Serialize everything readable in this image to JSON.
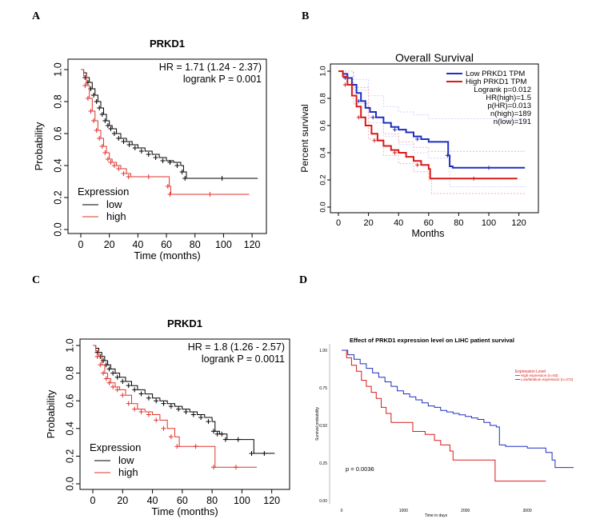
{
  "panel_labels": {
    "a": "A",
    "b": "B",
    "c": "C",
    "d": "D"
  },
  "colors": {
    "low_km": "#000000",
    "high_km": "#e0322c",
    "gepia_low": "#1f2fbf",
    "gepia_high": "#d91a1a",
    "ci_line": "#aaaaaa"
  },
  "chart_data": [
    {
      "id": "A",
      "type": "line",
      "title": "PRKD1",
      "xlabel": "Time (months)",
      "ylabel": "Probability",
      "xlim": [
        0,
        125
      ],
      "ylim": [
        0,
        1
      ],
      "x_ticks": [
        "0",
        "20",
        "40",
        "60",
        "80",
        "100",
        "120"
      ],
      "y_ticks": [
        "0.0",
        "0.2",
        "0.4",
        "0.6",
        "0.8",
        "1.0"
      ],
      "annotations": [
        "HR = 1.71 (1.24 - 2.37)",
        "logrank P = 0.001"
      ],
      "legend_title": "Expression",
      "legend_position": "bottom-left",
      "series": [
        {
          "name": "low",
          "color": "#000000",
          "points": [
            [
              0,
              1.0
            ],
            [
              2,
              0.98
            ],
            [
              4,
              0.95
            ],
            [
              6,
              0.92
            ],
            [
              8,
              0.88
            ],
            [
              10,
              0.84
            ],
            [
              12,
              0.8
            ],
            [
              14,
              0.76
            ],
            [
              16,
              0.72
            ],
            [
              18,
              0.68
            ],
            [
              20,
              0.65
            ],
            [
              22,
              0.63
            ],
            [
              25,
              0.6
            ],
            [
              28,
              0.57
            ],
            [
              32,
              0.55
            ],
            [
              36,
              0.53
            ],
            [
              40,
              0.51
            ],
            [
              45,
              0.49
            ],
            [
              50,
              0.47
            ],
            [
              55,
              0.45
            ],
            [
              60,
              0.43
            ],
            [
              65,
              0.42
            ],
            [
              70,
              0.4
            ],
            [
              72,
              0.36
            ],
            [
              74,
              0.32
            ],
            [
              124,
              0.32
            ]
          ]
        },
        {
          "name": "high",
          "color": "#e0322c",
          "points": [
            [
              0,
              1.0
            ],
            [
              2,
              0.96
            ],
            [
              4,
              0.9
            ],
            [
              6,
              0.82
            ],
            [
              8,
              0.74
            ],
            [
              10,
              0.68
            ],
            [
              12,
              0.62
            ],
            [
              14,
              0.57
            ],
            [
              16,
              0.52
            ],
            [
              18,
              0.48
            ],
            [
              20,
              0.44
            ],
            [
              22,
              0.42
            ],
            [
              25,
              0.4
            ],
            [
              28,
              0.38
            ],
            [
              32,
              0.35
            ],
            [
              35,
              0.33
            ],
            [
              60,
              0.33
            ],
            [
              62,
              0.27
            ],
            [
              63,
              0.22
            ],
            [
              118,
              0.22
            ]
          ]
        }
      ]
    },
    {
      "id": "B",
      "type": "line",
      "title": "Overall Survival",
      "xlabel": "Months",
      "ylabel": "Percent survival",
      "xlim": [
        0,
        125
      ],
      "ylim": [
        0,
        1
      ],
      "x_ticks": [
        "0",
        "20",
        "40",
        "60",
        "80",
        "100",
        "120"
      ],
      "y_ticks": [
        "0.0",
        "0.2",
        "0.4",
        "0.6",
        "0.8",
        "1.0"
      ],
      "legend": [
        "Low PRKD1 TPM",
        "High PRKD1 TPM"
      ],
      "annotations": [
        "Logrank p=0.012",
        "HR(high)=1.5",
        "p(HR)=0.013",
        "n(high)=189",
        "n(low)=191"
      ],
      "series": [
        {
          "name": "Low PRKD1 TPM",
          "color": "#1f2fbf",
          "points": [
            [
              0,
              1.0
            ],
            [
              3,
              0.98
            ],
            [
              6,
              0.95
            ],
            [
              9,
              0.9
            ],
            [
              12,
              0.84
            ],
            [
              15,
              0.78
            ],
            [
              18,
              0.73
            ],
            [
              21,
              0.7
            ],
            [
              25,
              0.66
            ],
            [
              30,
              0.62
            ],
            [
              35,
              0.59
            ],
            [
              40,
              0.57
            ],
            [
              45,
              0.55
            ],
            [
              50,
              0.52
            ],
            [
              55,
              0.5
            ],
            [
              60,
              0.48
            ],
            [
              72,
              0.48
            ],
            [
              73,
              0.38
            ],
            [
              74,
              0.3
            ],
            [
              76,
              0.29
            ],
            [
              124,
              0.29
            ]
          ]
        },
        {
          "name": "High PRKD1 TPM",
          "color": "#d91a1a",
          "points": [
            [
              0,
              1.0
            ],
            [
              3,
              0.96
            ],
            [
              6,
              0.9
            ],
            [
              9,
              0.82
            ],
            [
              12,
              0.74
            ],
            [
              15,
              0.66
            ],
            [
              18,
              0.6
            ],
            [
              22,
              0.54
            ],
            [
              26,
              0.49
            ],
            [
              30,
              0.45
            ],
            [
              35,
              0.42
            ],
            [
              40,
              0.4
            ],
            [
              45,
              0.37
            ],
            [
              50,
              0.34
            ],
            [
              55,
              0.31
            ],
            [
              60,
              0.28
            ],
            [
              61,
              0.21
            ],
            [
              119,
              0.21
            ]
          ]
        },
        {
          "name": "Low CI upper",
          "color": "#d0d0ff",
          "dashed": true,
          "points": [
            [
              0,
              1.0
            ],
            [
              10,
              0.94
            ],
            [
              20,
              0.82
            ],
            [
              30,
              0.74
            ],
            [
              40,
              0.7
            ],
            [
              50,
              0.68
            ],
            [
              60,
              0.65
            ],
            [
              80,
              0.65
            ],
            [
              124,
              0.65
            ]
          ]
        },
        {
          "name": "Low CI lower",
          "color": "#d0d0ff",
          "dashed": true,
          "points": [
            [
              0,
              1.0
            ],
            [
              10,
              0.86
            ],
            [
              20,
              0.62
            ],
            [
              30,
              0.52
            ],
            [
              40,
              0.46
            ],
            [
              50,
              0.4
            ],
            [
              60,
              0.36
            ],
            [
              74,
              0.15
            ],
            [
              124,
              0.15
            ]
          ]
        },
        {
          "name": "High CI upper",
          "color": "#f0b0b0",
          "dashed": true,
          "points": [
            [
              0,
              1.0
            ],
            [
              10,
              0.88
            ],
            [
              20,
              0.66
            ],
            [
              30,
              0.54
            ],
            [
              40,
              0.48
            ],
            [
              50,
              0.44
            ],
            [
              60,
              0.41
            ],
            [
              124,
              0.41
            ]
          ]
        },
        {
          "name": "High CI lower",
          "color": "#f0b0b0",
          "dashed": true,
          "points": [
            [
              0,
              1.0
            ],
            [
              10,
              0.76
            ],
            [
              20,
              0.5
            ],
            [
              30,
              0.38
            ],
            [
              40,
              0.32
            ],
            [
              50,
              0.26
            ],
            [
              60,
              0.2
            ],
            [
              62,
              0.1
            ],
            [
              124,
              0.1
            ]
          ]
        }
      ]
    },
    {
      "id": "C",
      "type": "line",
      "title": "PRKD1",
      "xlabel": "Time (months)",
      "ylabel": "Probability",
      "xlim": [
        0,
        125
      ],
      "ylim": [
        0,
        1
      ],
      "x_ticks": [
        "0",
        "20",
        "40",
        "60",
        "80",
        "100",
        "120"
      ],
      "y_ticks": [
        "0.0",
        "0.2",
        "0.4",
        "0.6",
        "0.8",
        "1.0"
      ],
      "annotations": [
        "HR = 1.8 (1.26 - 2.57)",
        "logrank P = 0.0011"
      ],
      "legend_title": "Expression",
      "legend_position": "bottom-left",
      "series": [
        {
          "name": "low",
          "color": "#000000",
          "points": [
            [
              0,
              1.0
            ],
            [
              2,
              0.98
            ],
            [
              4,
              0.95
            ],
            [
              6,
              0.92
            ],
            [
              8,
              0.89
            ],
            [
              10,
              0.86
            ],
            [
              12,
              0.83
            ],
            [
              15,
              0.8
            ],
            [
              18,
              0.77
            ],
            [
              22,
              0.74
            ],
            [
              26,
              0.71
            ],
            [
              30,
              0.68
            ],
            [
              35,
              0.65
            ],
            [
              40,
              0.62
            ],
            [
              45,
              0.6
            ],
            [
              50,
              0.58
            ],
            [
              55,
              0.56
            ],
            [
              60,
              0.54
            ],
            [
              65,
              0.52
            ],
            [
              70,
              0.5
            ],
            [
              75,
              0.48
            ],
            [
              80,
              0.45
            ],
            [
              82,
              0.38
            ],
            [
              85,
              0.36
            ],
            [
              88,
              0.36
            ],
            [
              90,
              0.32
            ],
            [
              105,
              0.32
            ],
            [
              108,
              0.22
            ],
            [
              122,
              0.22
            ]
          ]
        },
        {
          "name": "high",
          "color": "#e0322c",
          "points": [
            [
              0,
              1.0
            ],
            [
              2,
              0.96
            ],
            [
              4,
              0.92
            ],
            [
              6,
              0.86
            ],
            [
              8,
              0.8
            ],
            [
              10,
              0.76
            ],
            [
              12,
              0.73
            ],
            [
              15,
              0.7
            ],
            [
              18,
              0.68
            ],
            [
              22,
              0.64
            ],
            [
              26,
              0.58
            ],
            [
              30,
              0.54
            ],
            [
              35,
              0.52
            ],
            [
              40,
              0.5
            ],
            [
              45,
              0.46
            ],
            [
              50,
              0.4
            ],
            [
              55,
              0.34
            ],
            [
              58,
              0.27
            ],
            [
              80,
              0.27
            ],
            [
              82,
              0.12
            ],
            [
              110,
              0.12
            ]
          ]
        }
      ]
    },
    {
      "id": "D",
      "type": "line",
      "title": "Effect of PRKD1 expression level on LIHC patient survival",
      "xlabel": "Time in days",
      "ylabel": "Survival probability",
      "xlim": [
        0,
        3800
      ],
      "ylim": [
        0,
        1
      ],
      "x_ticks": [
        "0",
        "1000",
        "2000",
        "3000"
      ],
      "x_tick_values": [
        0,
        1000,
        2000,
        3000
      ],
      "y_ticks": [
        "0.00",
        "0.25",
        "0.50",
        "0.75",
        "1.00"
      ],
      "legend_title": "Expression Level",
      "legend": [
        "High expression (n=93)",
        "Low/Medium expression (n=272)"
      ],
      "annotations": [
        "p = 0.0036"
      ],
      "series": [
        {
          "name": "High expression (n=93)",
          "color": "#d91a1a",
          "points": [
            [
              0,
              1.0
            ],
            [
              80,
              0.95
            ],
            [
              160,
              0.9
            ],
            [
              240,
              0.86
            ],
            [
              320,
              0.8
            ],
            [
              400,
              0.76
            ],
            [
              480,
              0.72
            ],
            [
              560,
              0.68
            ],
            [
              640,
              0.62
            ],
            [
              720,
              0.58
            ],
            [
              800,
              0.52
            ],
            [
              1000,
              0.52
            ],
            [
              1150,
              0.46
            ],
            [
              1350,
              0.44
            ],
            [
              1500,
              0.4
            ],
            [
              1600,
              0.37
            ],
            [
              1750,
              0.33
            ],
            [
              1800,
              0.27
            ],
            [
              2450,
              0.27
            ],
            [
              2480,
              0.13
            ],
            [
              3300,
              0.13
            ]
          ]
        },
        {
          "name": "Low/Medium expression (n=272)",
          "color": "#1f2fbf",
          "points": [
            [
              0,
              1.0
            ],
            [
              100,
              0.97
            ],
            [
              200,
              0.94
            ],
            [
              300,
              0.91
            ],
            [
              400,
              0.88
            ],
            [
              500,
              0.85
            ],
            [
              600,
              0.82
            ],
            [
              700,
              0.79
            ],
            [
              800,
              0.76
            ],
            [
              900,
              0.73
            ],
            [
              1000,
              0.71
            ],
            [
              1100,
              0.69
            ],
            [
              1200,
              0.67
            ],
            [
              1300,
              0.65
            ],
            [
              1400,
              0.63
            ],
            [
              1500,
              0.62
            ],
            [
              1600,
              0.6
            ],
            [
              1700,
              0.59
            ],
            [
              1800,
              0.58
            ],
            [
              1900,
              0.57
            ],
            [
              2000,
              0.56
            ],
            [
              2100,
              0.55
            ],
            [
              2200,
              0.54
            ],
            [
              2300,
              0.52
            ],
            [
              2400,
              0.5
            ],
            [
              2500,
              0.49
            ],
            [
              2550,
              0.37
            ],
            [
              2650,
              0.36
            ],
            [
              3000,
              0.35
            ],
            [
              3300,
              0.32
            ],
            [
              3400,
              0.27
            ],
            [
              3450,
              0.22
            ],
            [
              3750,
              0.22
            ]
          ]
        }
      ]
    }
  ]
}
